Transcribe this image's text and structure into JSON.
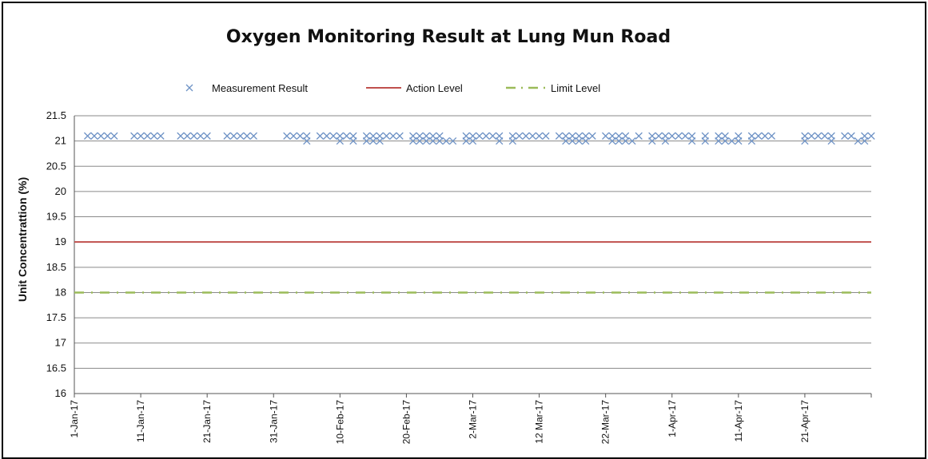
{
  "chart_data": {
    "type": "scatter",
    "title": "Oxygen Monitoring Result at Lung Mun Road",
    "xlabel": "",
    "ylabel": "Unit Concentrattion (%)",
    "ylim": [
      16,
      21.5
    ],
    "yticks": [
      "16",
      "16.5",
      "17",
      "17.5",
      "18",
      "18.5",
      "19",
      "19.5",
      "20",
      "20.5",
      "21",
      "21.5"
    ],
    "xlim": [
      "2017-01-01",
      "2017-05-01"
    ],
    "xticks": [
      {
        "date": "2017-01-01",
        "label": "1-Jan-17"
      },
      {
        "date": "2017-01-11",
        "label": "11-Jan-17"
      },
      {
        "date": "2017-01-21",
        "label": "21-Jan-17"
      },
      {
        "date": "2017-01-31",
        "label": "31-Jan-17"
      },
      {
        "date": "2017-02-10",
        "label": "10-Feb-17"
      },
      {
        "date": "2017-02-20",
        "label": "20-Feb-17"
      },
      {
        "date": "2017-03-02",
        "label": "2-Mar-17"
      },
      {
        "date": "2017-03-12",
        "label": "12 Mar-17"
      },
      {
        "date": "2017-03-22",
        "label": "22-Mar-17"
      },
      {
        "date": "2017-04-01",
        "label": "1-Apr-17"
      },
      {
        "date": "2017-04-11",
        "label": "11-Apr-17"
      },
      {
        "date": "2017-04-21",
        "label": "21-Apr-17"
      }
    ],
    "grid": true,
    "legend_position": "top",
    "series": [
      {
        "name": "Measurement Result",
        "kind": "scatter",
        "marker": "x",
        "color": "#6f93c6",
        "points": [
          [
            "2017-01-03",
            21.1
          ],
          [
            "2017-01-04",
            21.1
          ],
          [
            "2017-01-05",
            21.1
          ],
          [
            "2017-01-06",
            21.1
          ],
          [
            "2017-01-07",
            21.1
          ],
          [
            "2017-01-10",
            21.1
          ],
          [
            "2017-01-11",
            21.1
          ],
          [
            "2017-01-12",
            21.1
          ],
          [
            "2017-01-13",
            21.1
          ],
          [
            "2017-01-14",
            21.1
          ],
          [
            "2017-01-17",
            21.1
          ],
          [
            "2017-01-18",
            21.1
          ],
          [
            "2017-01-19",
            21.1
          ],
          [
            "2017-01-20",
            21.1
          ],
          [
            "2017-01-21",
            21.1
          ],
          [
            "2017-01-24",
            21.1
          ],
          [
            "2017-01-25",
            21.1
          ],
          [
            "2017-01-26",
            21.1
          ],
          [
            "2017-01-27",
            21.1
          ],
          [
            "2017-01-28",
            21.1
          ],
          [
            "2017-02-02",
            21.1
          ],
          [
            "2017-02-03",
            21.1
          ],
          [
            "2017-02-04",
            21.1
          ],
          [
            "2017-02-05",
            21.1
          ],
          [
            "2017-02-05",
            21.0
          ],
          [
            "2017-02-07",
            21.1
          ],
          [
            "2017-02-08",
            21.1
          ],
          [
            "2017-02-09",
            21.1
          ],
          [
            "2017-02-10",
            21.1
          ],
          [
            "2017-02-10",
            21.0
          ],
          [
            "2017-02-11",
            21.1
          ],
          [
            "2017-02-12",
            21.1
          ],
          [
            "2017-02-12",
            21.0
          ],
          [
            "2017-02-14",
            21.1
          ],
          [
            "2017-02-14",
            21.0
          ],
          [
            "2017-02-15",
            21.1
          ],
          [
            "2017-02-15",
            21.0
          ],
          [
            "2017-02-16",
            21.1
          ],
          [
            "2017-02-16",
            21.0
          ],
          [
            "2017-02-17",
            21.1
          ],
          [
            "2017-02-18",
            21.1
          ],
          [
            "2017-02-19",
            21.1
          ],
          [
            "2017-02-21",
            21.1
          ],
          [
            "2017-02-21",
            21.0
          ],
          [
            "2017-02-22",
            21.1
          ],
          [
            "2017-02-22",
            21.0
          ],
          [
            "2017-02-23",
            21.1
          ],
          [
            "2017-02-23",
            21.0
          ],
          [
            "2017-02-24",
            21.1
          ],
          [
            "2017-02-24",
            21.0
          ],
          [
            "2017-02-25",
            21.1
          ],
          [
            "2017-02-25",
            21.0
          ],
          [
            "2017-02-26",
            21.0
          ],
          [
            "2017-02-27",
            21.0
          ],
          [
            "2017-03-01",
            21.1
          ],
          [
            "2017-03-01",
            21.0
          ],
          [
            "2017-03-02",
            21.1
          ],
          [
            "2017-03-02",
            21.0
          ],
          [
            "2017-03-03",
            21.1
          ],
          [
            "2017-03-04",
            21.1
          ],
          [
            "2017-03-05",
            21.1
          ],
          [
            "2017-03-06",
            21.1
          ],
          [
            "2017-03-06",
            21.0
          ],
          [
            "2017-03-08",
            21.1
          ],
          [
            "2017-03-08",
            21.0
          ],
          [
            "2017-03-09",
            21.1
          ],
          [
            "2017-03-10",
            21.1
          ],
          [
            "2017-03-11",
            21.1
          ],
          [
            "2017-03-12",
            21.1
          ],
          [
            "2017-03-13",
            21.1
          ],
          [
            "2017-03-15",
            21.1
          ],
          [
            "2017-03-16",
            21.1
          ],
          [
            "2017-03-16",
            21.0
          ],
          [
            "2017-03-17",
            21.1
          ],
          [
            "2017-03-17",
            21.0
          ],
          [
            "2017-03-18",
            21.1
          ],
          [
            "2017-03-18",
            21.0
          ],
          [
            "2017-03-19",
            21.1
          ],
          [
            "2017-03-19",
            21.0
          ],
          [
            "2017-03-20",
            21.1
          ],
          [
            "2017-03-22",
            21.1
          ],
          [
            "2017-03-23",
            21.1
          ],
          [
            "2017-03-23",
            21.0
          ],
          [
            "2017-03-24",
            21.1
          ],
          [
            "2017-03-24",
            21.0
          ],
          [
            "2017-03-25",
            21.1
          ],
          [
            "2017-03-25",
            21.0
          ],
          [
            "2017-03-26",
            21.0
          ],
          [
            "2017-03-27",
            21.1
          ],
          [
            "2017-03-29",
            21.1
          ],
          [
            "2017-03-29",
            21.0
          ],
          [
            "2017-03-30",
            21.1
          ],
          [
            "2017-03-31",
            21.1
          ],
          [
            "2017-03-31",
            21.0
          ],
          [
            "2017-04-01",
            21.1
          ],
          [
            "2017-04-02",
            21.1
          ],
          [
            "2017-04-03",
            21.1
          ],
          [
            "2017-04-04",
            21.1
          ],
          [
            "2017-04-04",
            21.0
          ],
          [
            "2017-04-06",
            21.1
          ],
          [
            "2017-04-06",
            21.0
          ],
          [
            "2017-04-08",
            21.1
          ],
          [
            "2017-04-08",
            21.0
          ],
          [
            "2017-04-09",
            21.1
          ],
          [
            "2017-04-09",
            21.0
          ],
          [
            "2017-04-10",
            21.0
          ],
          [
            "2017-04-11",
            21.1
          ],
          [
            "2017-04-11",
            21.0
          ],
          [
            "2017-04-13",
            21.1
          ],
          [
            "2017-04-13",
            21.0
          ],
          [
            "2017-04-14",
            21.1
          ],
          [
            "2017-04-15",
            21.1
          ],
          [
            "2017-04-16",
            21.1
          ],
          [
            "2017-04-21",
            21.1
          ],
          [
            "2017-04-21",
            21.0
          ],
          [
            "2017-04-22",
            21.1
          ],
          [
            "2017-04-23",
            21.1
          ],
          [
            "2017-04-24",
            21.1
          ],
          [
            "2017-04-25",
            21.1
          ],
          [
            "2017-04-25",
            21.0
          ],
          [
            "2017-04-27",
            21.1
          ],
          [
            "2017-04-28",
            21.1
          ],
          [
            "2017-04-29",
            21.0
          ],
          [
            "2017-04-30",
            21.1
          ],
          [
            "2017-04-30",
            21.0
          ],
          [
            "2017-05-01",
            21.1
          ]
        ]
      },
      {
        "name": "Action Level",
        "kind": "line",
        "color": "#c0504d",
        "dash": "solid",
        "value": 19
      },
      {
        "name": "Limit Level",
        "kind": "line",
        "color": "#9bbb59",
        "dash": "dash-dot",
        "value": 18
      }
    ]
  }
}
